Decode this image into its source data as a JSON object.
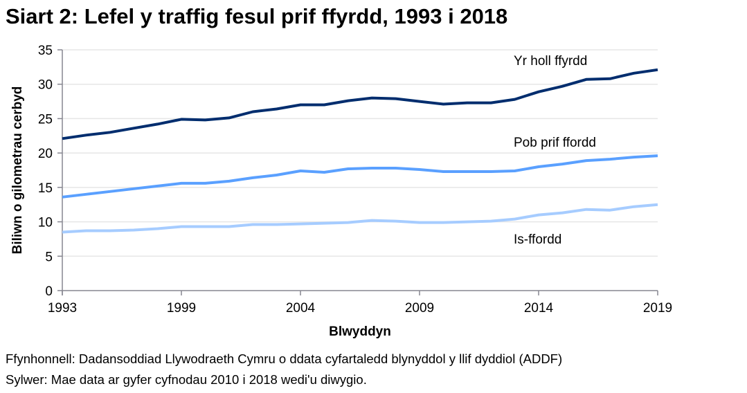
{
  "title": "Siart 2: Lefel y traffig fesul prif ffyrdd, 1993 i 2018",
  "chart_data": {
    "type": "line",
    "xlabel": "Blwyddyn",
    "ylabel": "Biliwn o gilometrau cerbyd",
    "ylim": [
      0,
      35
    ],
    "yticks": [
      0,
      5,
      10,
      15,
      20,
      25,
      30,
      35
    ],
    "xtick_labels": [
      "1993",
      "1999",
      "2004",
      "2009",
      "2014",
      "2019"
    ],
    "grid": "horizontal",
    "x": [
      1993,
      1995,
      1996,
      1997,
      1998,
      1999,
      2000,
      2001,
      2002,
      2003,
      2004,
      2005,
      2006,
      2007,
      2008,
      2009,
      2010,
      2011,
      2012,
      2013,
      2014,
      2015,
      2016,
      2017,
      2018,
      2019
    ],
    "series": [
      {
        "name": "Yr holl ffyrdd",
        "color": "#002d6e",
        "values": [
          22.1,
          22.6,
          23.0,
          23.6,
          24.2,
          24.9,
          24.8,
          25.1,
          26.0,
          26.4,
          27.0,
          27.0,
          27.6,
          28.0,
          27.9,
          27.5,
          27.1,
          27.3,
          27.3,
          27.8,
          28.9,
          29.7,
          30.7,
          30.8,
          31.6,
          32.1
        ]
      },
      {
        "name": "Pob prif ffordd",
        "color": "#5aa0ff",
        "values": [
          13.6,
          14.0,
          14.4,
          14.8,
          15.2,
          15.6,
          15.6,
          15.9,
          16.4,
          16.8,
          17.4,
          17.2,
          17.7,
          17.8,
          17.8,
          17.6,
          17.3,
          17.3,
          17.3,
          17.4,
          18.0,
          18.4,
          18.9,
          19.1,
          19.4,
          19.6
        ]
      },
      {
        "name": "Is-ffordd",
        "color": "#a6ccff",
        "values": [
          8.5,
          8.7,
          8.7,
          8.8,
          9.0,
          9.3,
          9.3,
          9.3,
          9.6,
          9.6,
          9.7,
          9.8,
          9.9,
          10.2,
          10.1,
          9.9,
          9.9,
          10.0,
          10.1,
          10.4,
          11.0,
          11.3,
          11.8,
          11.7,
          12.2,
          12.5
        ]
      }
    ]
  },
  "notes": {
    "source": "Ffynhonnell: Dadansoddiad Llywodraeth Cymru o ddata cyfartaledd blynyddol y llif dyddiol (ADDF)",
    "note": "Sylwer: Mae data ar gyfer cyfnodau 2010 i 2018 wedi'u diwygio."
  }
}
